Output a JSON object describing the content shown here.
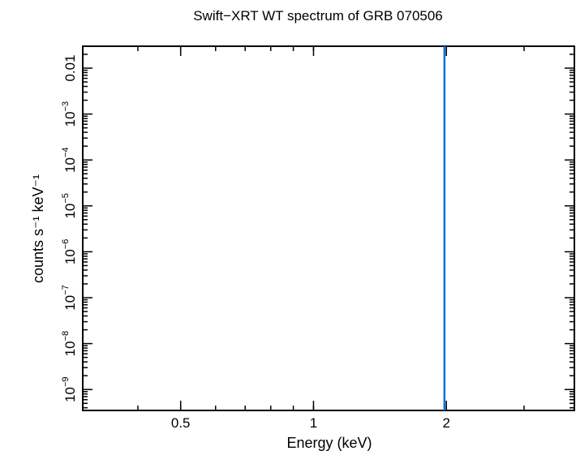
{
  "chart_data": {
    "type": "line",
    "title": "Swift−XRT WT spectrum of GRB 070506",
    "xlabel": "Energy (keV)",
    "ylabel": "counts s⁻¹ keV⁻¹",
    "x_scale": "log",
    "y_scale": "log",
    "xlim": [
      0.3,
      3.9
    ],
    "ylim": [
      3.5e-10,
      0.03
    ],
    "x_major_ticks": [
      {
        "value": 0.5,
        "label": "0.5"
      },
      {
        "value": 1,
        "label": "1"
      },
      {
        "value": 2,
        "label": "2"
      }
    ],
    "y_major_ticks": [
      {
        "value": 1e-09,
        "base": "10",
        "exp": "−9"
      },
      {
        "value": 1e-08,
        "base": "10",
        "exp": "−8"
      },
      {
        "value": 1e-07,
        "base": "10",
        "exp": "−7"
      },
      {
        "value": 1e-06,
        "base": "10",
        "exp": "−6"
      },
      {
        "value": 1e-05,
        "base": "10",
        "exp": "−5"
      },
      {
        "value": 0.0001,
        "base": "10",
        "exp": "−4"
      },
      {
        "value": 0.001,
        "base": "10",
        "exp": "−3"
      },
      {
        "value": 0.01,
        "base": "0.01",
        "exp": ""
      }
    ],
    "series": [
      {
        "color": "#0a6fe0",
        "x": [
          1.98,
          1.98
        ],
        "y": [
          3.5e-10,
          0.03
        ]
      }
    ],
    "grid": false,
    "legend": "none"
  }
}
